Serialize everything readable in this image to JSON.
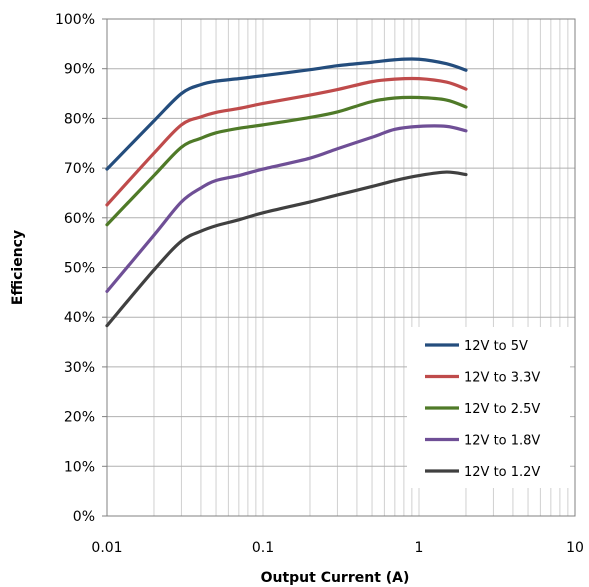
{
  "chart_data": {
    "type": "line",
    "xlabel": "Output Current (A)",
    "ylabel": "Efficiency",
    "x_scale": "log",
    "xlim": [
      0.01,
      10
    ],
    "ylim": [
      0,
      100
    ],
    "x_ticks": [
      "0.01",
      "0.1",
      "1",
      "10"
    ],
    "y_ticks": [
      "0%",
      "10%",
      "20%",
      "30%",
      "40%",
      "50%",
      "60%",
      "70%",
      "80%",
      "90%",
      "100%"
    ],
    "grid": true,
    "legend_position": "bottom-right",
    "series": [
      {
        "name": "12V to 5V",
        "color": "#244d7d",
        "x": [
          0.01,
          0.02,
          0.03,
          0.04,
          0.05,
          0.07,
          0.1,
          0.2,
          0.3,
          0.5,
          0.7,
          1.0,
          1.5,
          2.0
        ],
        "y": [
          69.8,
          79.5,
          85.0,
          86.8,
          87.5,
          88.0,
          88.6,
          89.8,
          90.6,
          91.3,
          91.8,
          91.9,
          91.0,
          89.7
        ]
      },
      {
        "name": "12V to 3.3V",
        "color": "#bf4b4b",
        "x": [
          0.01,
          0.02,
          0.03,
          0.04,
          0.05,
          0.07,
          0.1,
          0.2,
          0.3,
          0.5,
          0.7,
          1.0,
          1.5,
          2.0
        ],
        "y": [
          62.6,
          73.0,
          78.7,
          80.3,
          81.2,
          82.0,
          83.0,
          84.7,
          85.8,
          87.4,
          87.9,
          88.0,
          87.3,
          85.9
        ]
      },
      {
        "name": "12V to 2.5V",
        "color": "#4f7a28",
        "x": [
          0.01,
          0.02,
          0.03,
          0.04,
          0.05,
          0.07,
          0.1,
          0.2,
          0.3,
          0.5,
          0.7,
          1.0,
          1.5,
          2.0
        ],
        "y": [
          58.6,
          68.5,
          74.2,
          76.0,
          77.1,
          78.0,
          78.7,
          80.2,
          81.3,
          83.4,
          84.1,
          84.2,
          83.7,
          82.3
        ]
      },
      {
        "name": "12V to 1.8V",
        "color": "#6f4f96",
        "x": [
          0.01,
          0.02,
          0.03,
          0.04,
          0.05,
          0.07,
          0.1,
          0.2,
          0.3,
          0.5,
          0.7,
          1.0,
          1.5,
          2.0
        ],
        "y": [
          45.2,
          56.5,
          63.2,
          66.0,
          67.5,
          68.5,
          69.8,
          72.0,
          73.9,
          76.2,
          77.8,
          78.4,
          78.4,
          77.5
        ]
      },
      {
        "name": "12V to 1.2V",
        "color": "#404040",
        "x": [
          0.01,
          0.02,
          0.03,
          0.04,
          0.05,
          0.07,
          0.1,
          0.2,
          0.3,
          0.5,
          0.7,
          1.0,
          1.5,
          2.0
        ],
        "y": [
          38.3,
          49.5,
          55.3,
          57.3,
          58.4,
          59.6,
          61.0,
          63.2,
          64.6,
          66.3,
          67.5,
          68.5,
          69.2,
          68.7
        ]
      }
    ]
  }
}
